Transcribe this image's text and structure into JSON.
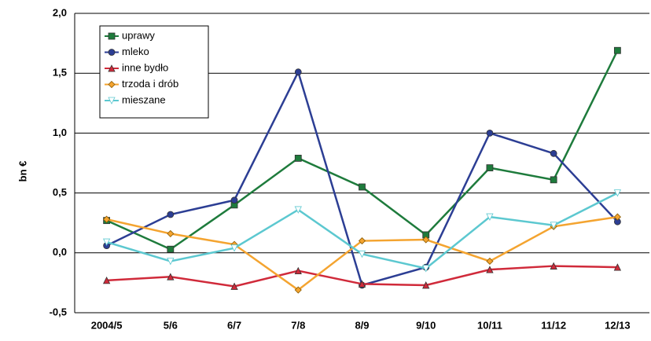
{
  "chart_data": {
    "type": "line",
    "y_label": "bn €",
    "categories": [
      "2004/5",
      "5/6",
      "6/7",
      "7/8",
      "8/9",
      "9/10",
      "10/11",
      "11/12",
      "12/13"
    ],
    "ylim": [
      -0.5,
      2.0
    ],
    "yticks": [
      {
        "value": -0.5,
        "label": "-0,5"
      },
      {
        "value": 0,
        "label": "0,0"
      },
      {
        "value": 0.5,
        "label": "0,5"
      },
      {
        "value": 1.0,
        "label": "1,0"
      },
      {
        "value": 1.5,
        "label": "1,5"
      },
      {
        "value": 2.0,
        "label": "2,0"
      }
    ],
    "grid": true,
    "legend": "upper left",
    "series": [
      {
        "name": "uprawy",
        "color": "#1e7b3c",
        "marker": "square",
        "values": [
          0.27,
          0.03,
          0.4,
          0.79,
          0.55,
          0.15,
          0.71,
          0.61,
          1.69
        ]
      },
      {
        "name": "mleko",
        "color": "#2c3e94",
        "marker": "circle",
        "values": [
          0.06,
          0.32,
          0.44,
          1.51,
          -0.27,
          -0.12,
          1.0,
          0.83,
          0.26
        ]
      },
      {
        "name": "inne bydło",
        "color": "#d02a3a",
        "marker": "triangle",
        "values": [
          -0.23,
          -0.2,
          -0.28,
          -0.15,
          -0.26,
          -0.27,
          -0.14,
          -0.11,
          -0.12
        ]
      },
      {
        "name": "trzoda i drób",
        "color": "#f4a430",
        "marker": "diamond",
        "values": [
          0.28,
          0.16,
          0.07,
          -0.31,
          0.1,
          0.11,
          -0.07,
          0.22,
          0.3
        ]
      },
      {
        "name": "mieszane",
        "color": "#5cc8d0",
        "marker": "triangle-down",
        "values": [
          0.09,
          -0.07,
          0.04,
          0.36,
          -0.01,
          -0.13,
          0.3,
          0.23,
          0.5
        ]
      }
    ]
  }
}
